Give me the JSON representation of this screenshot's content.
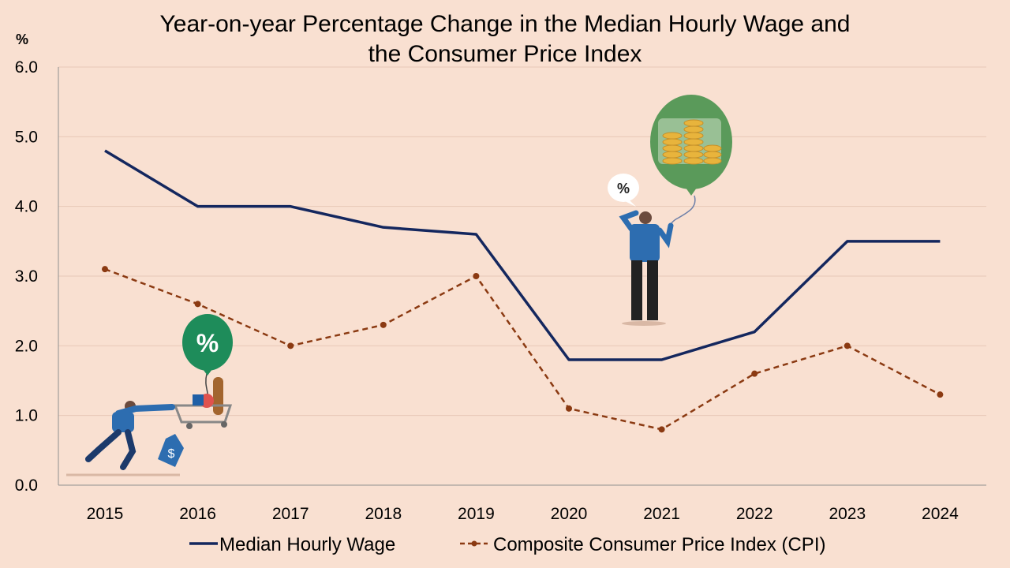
{
  "chart_data": {
    "type": "line",
    "title_lines": [
      "Year-on-year Percentage Change in the Median Hourly Wage and",
      "the Consumer Price Index"
    ],
    "ylabel": "%",
    "ylim": [
      0,
      6
    ],
    "yticks": [
      "0.0",
      "1.0",
      "2.0",
      "3.0",
      "4.0",
      "5.0",
      "6.0"
    ],
    "grid": true,
    "legend_position": "bottom",
    "categories": [
      "2015",
      "2016",
      "2017",
      "2018",
      "2019",
      "2020",
      "2021",
      "2022",
      "2023",
      "2024"
    ],
    "series": [
      {
        "name": "Median Hourly Wage",
        "style": "solid",
        "color": "#14275e",
        "values": [
          4.8,
          4.0,
          4.0,
          3.7,
          3.6,
          1.8,
          1.8,
          2.2,
          3.5,
          3.5
        ]
      },
      {
        "name": "Composite Consumer Price Index (CPI)",
        "style": "dashed-markers",
        "color": "#8b3a12",
        "values": [
          3.1,
          2.6,
          2.0,
          2.3,
          3.0,
          1.1,
          0.8,
          1.6,
          2.0,
          1.3
        ]
      }
    ],
    "illustrations": {
      "balloon_left_symbol": "%",
      "speech_bubble_symbol": "%",
      "price_tag_symbol": "$"
    }
  }
}
